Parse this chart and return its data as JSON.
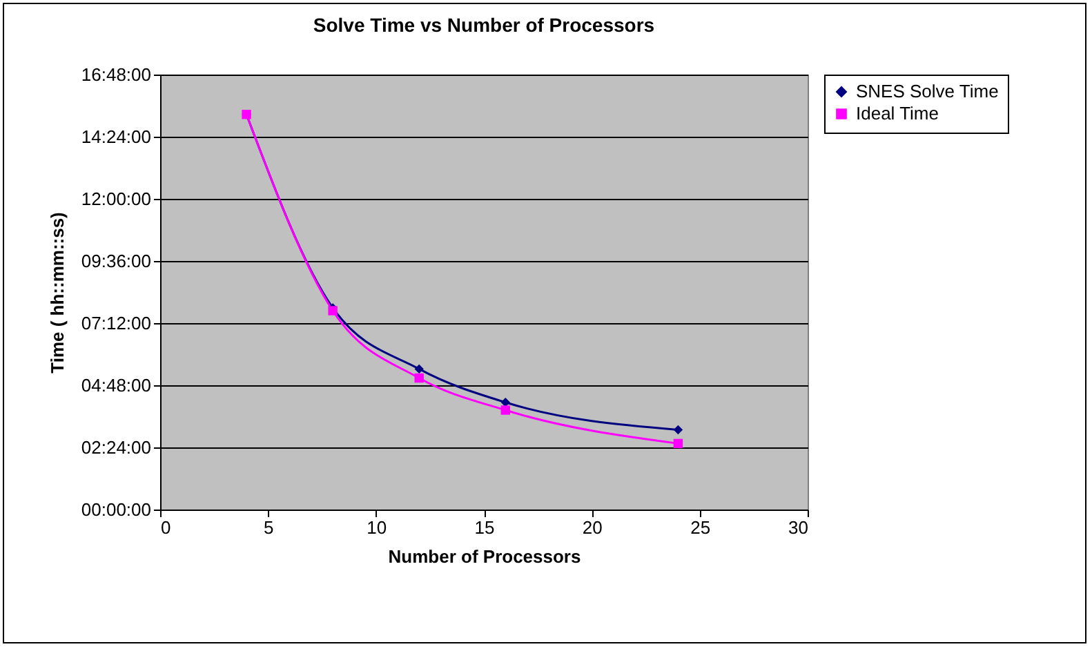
{
  "chart_data": {
    "type": "line",
    "title": "Solve Time vs Number of Processors",
    "xlabel": "Number of Processors",
    "ylabel": "Time ( hh::mm::ss)",
    "x": [
      4,
      8,
      12,
      16,
      24
    ],
    "series": [
      {
        "name": "SNES Solve Time",
        "color": "#000080",
        "marker": "diamond",
        "values": [
          15.26,
          7.79,
          5.43,
          4.14,
          3.08
        ]
      },
      {
        "name": "Ideal Time",
        "color": "#ff00ff",
        "marker": "square",
        "values": [
          15.26,
          7.68,
          5.08,
          3.84,
          2.55
        ]
      }
    ],
    "xlim": [
      0,
      30
    ],
    "xticks": [
      0,
      5,
      10,
      15,
      20,
      25,
      30
    ],
    "ylim": [
      0,
      16.8
    ],
    "yticks": [
      {
        "value": 0,
        "label": "00:00:00"
      },
      {
        "value": 2.4,
        "label": "02:24:00"
      },
      {
        "value": 4.8,
        "label": "04:48:00"
      },
      {
        "value": 7.2,
        "label": "07:12:00"
      },
      {
        "value": 9.6,
        "label": "09:36:00"
      },
      {
        "value": 12,
        "label": "12:00:00"
      },
      {
        "value": 14.4,
        "label": "14:24:00"
      },
      {
        "value": 16.8,
        "label": "16:48:00"
      }
    ],
    "grid": "y",
    "legend": "right",
    "line_style": "solid"
  }
}
